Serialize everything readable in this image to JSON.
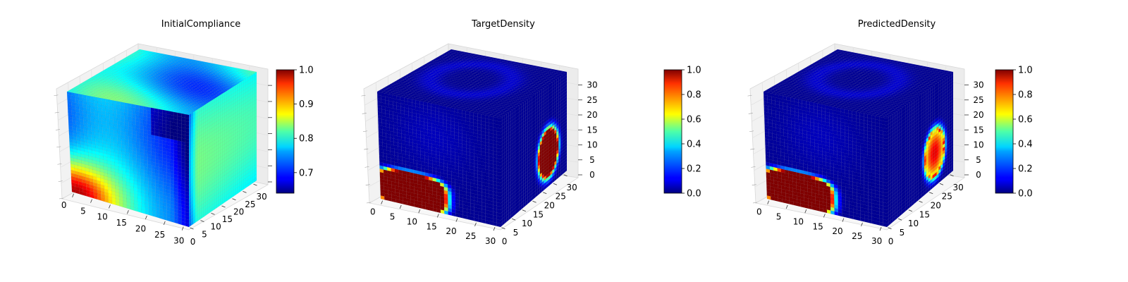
{
  "chart_data": [
    {
      "type": "heatmap",
      "title": "InitialCompliance",
      "grid": true,
      "colormap": "jet",
      "x_ticks": [
        "0",
        "5",
        "10",
        "15",
        "20",
        "25",
        "30"
      ],
      "y_ticks": [
        "0",
        "5",
        "10",
        "15",
        "20",
        "25",
        "30"
      ],
      "z_ticks": [],
      "xlim": [
        0,
        32
      ],
      "ylim": [
        0,
        32
      ],
      "zlim": [
        0,
        32
      ],
      "colorbar": {
        "min": 0.64,
        "max": 1.0,
        "ticks": [
          "0.7",
          "0.8",
          "0.9",
          "1.0"
        ],
        "tick_values": [
          0.7,
          0.8,
          0.9,
          1.0
        ]
      },
      "pattern": "compliance",
      "left_face_level": 0.76,
      "top_face_level": 0.79,
      "right_face_level": 0.78
    },
    {
      "type": "heatmap",
      "title": "TargetDensity",
      "grid": true,
      "colormap": "jet",
      "x_ticks": [
        "0",
        "5",
        "10",
        "15",
        "20",
        "25",
        "30"
      ],
      "y_ticks": [
        "0",
        "5",
        "10",
        "15",
        "20",
        "25",
        "30"
      ],
      "z_ticks": [
        "0",
        "5",
        "10",
        "15",
        "20",
        "25",
        "30"
      ],
      "xlim": [
        0,
        32
      ],
      "ylim": [
        0,
        32
      ],
      "zlim": [
        0,
        32
      ],
      "colorbar": {
        "min": 0.0,
        "max": 1.0,
        "ticks": [
          "0.0",
          "0.2",
          "0.4",
          "0.6",
          "0.8",
          "1.0"
        ],
        "tick_values": [
          0.0,
          0.2,
          0.4,
          0.6,
          0.8,
          1.0
        ]
      },
      "pattern": "density",
      "background_level": 0.02,
      "front_blob_peak": 1.0,
      "right_blob_peak": 1.0
    },
    {
      "type": "heatmap",
      "title": "PredictedDensity",
      "grid": true,
      "colormap": "jet",
      "x_ticks": [
        "0",
        "5",
        "10",
        "15",
        "20",
        "25",
        "30"
      ],
      "y_ticks": [
        "0",
        "5",
        "10",
        "15",
        "20",
        "25",
        "30"
      ],
      "z_ticks": [
        "0",
        "5",
        "10",
        "15",
        "20",
        "25",
        "30"
      ],
      "xlim": [
        0,
        32
      ],
      "ylim": [
        0,
        32
      ],
      "zlim": [
        0,
        32
      ],
      "colorbar": {
        "min": 0.0,
        "max": 1.0,
        "ticks": [
          "0.0",
          "0.2",
          "0.4",
          "0.6",
          "0.8",
          "1.0"
        ],
        "tick_values": [
          0.0,
          0.2,
          0.4,
          0.6,
          0.8,
          1.0
        ]
      },
      "pattern": "density",
      "background_level": 0.02,
      "front_blob_peak": 1.0,
      "right_blob_peak": 0.9
    }
  ]
}
